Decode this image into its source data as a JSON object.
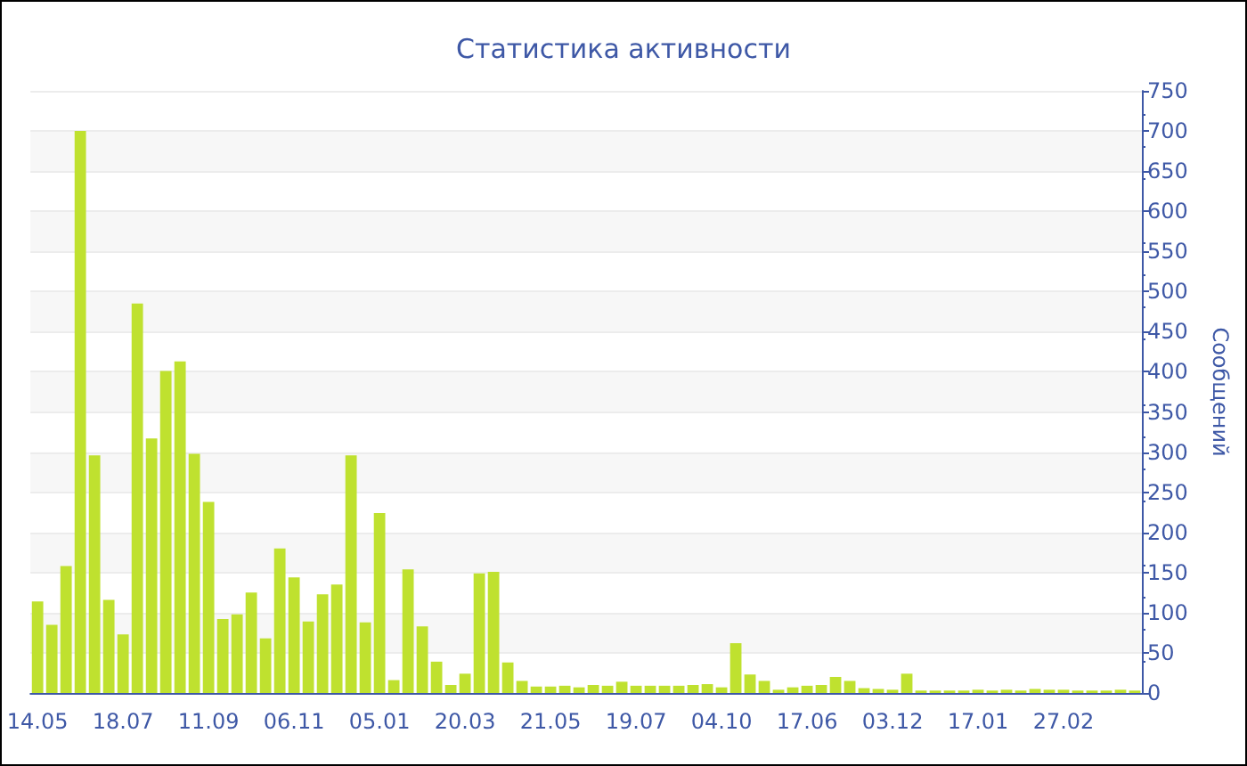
{
  "chart_data": {
    "type": "bar",
    "title": "Статистика активности",
    "ylabel": "Сообщений",
    "categories": [
      "14.05",
      null,
      null,
      null,
      null,
      null,
      "18.07",
      null,
      null,
      null,
      null,
      null,
      "11.09",
      null,
      null,
      null,
      null,
      null,
      "06.11",
      null,
      null,
      null,
      null,
      null,
      "05.01",
      null,
      null,
      null,
      null,
      null,
      "20.03",
      null,
      null,
      null,
      null,
      null,
      "21.05",
      null,
      null,
      null,
      null,
      null,
      "19.07",
      null,
      null,
      null,
      null,
      null,
      "04.10",
      null,
      null,
      null,
      null,
      null,
      "17.06",
      null,
      null,
      null,
      null,
      null,
      "03.12",
      null,
      null,
      null,
      null,
      null,
      "17.01",
      null,
      null,
      null,
      null,
      null,
      "27.02",
      null,
      null,
      null,
      null,
      null
    ],
    "values": [
      114,
      85,
      158,
      700,
      296,
      116,
      73,
      485,
      317,
      401,
      413,
      298,
      238,
      92,
      98,
      125,
      68,
      180,
      144,
      89,
      123,
      135,
      296,
      88,
      224,
      16,
      154,
      83,
      39,
      10,
      24,
      149,
      151,
      38,
      15,
      8,
      8,
      9,
      7,
      10,
      9,
      14,
      9,
      9,
      9,
      9,
      10,
      11,
      7,
      62,
      23,
      15,
      4,
      7,
      9,
      10,
      20,
      15,
      6,
      5,
      4,
      24,
      3,
      3,
      3,
      3,
      4,
      3,
      4,
      3,
      5,
      4,
      4,
      3,
      3,
      3,
      4,
      3
    ],
    "color": "#bfe12f",
    "ylim": [
      0,
      750
    ],
    "yticks": [
      0,
      50,
      100,
      150,
      200,
      250,
      300,
      350,
      400,
      450,
      500,
      550,
      600,
      650,
      700,
      750
    ],
    "grid": true
  }
}
